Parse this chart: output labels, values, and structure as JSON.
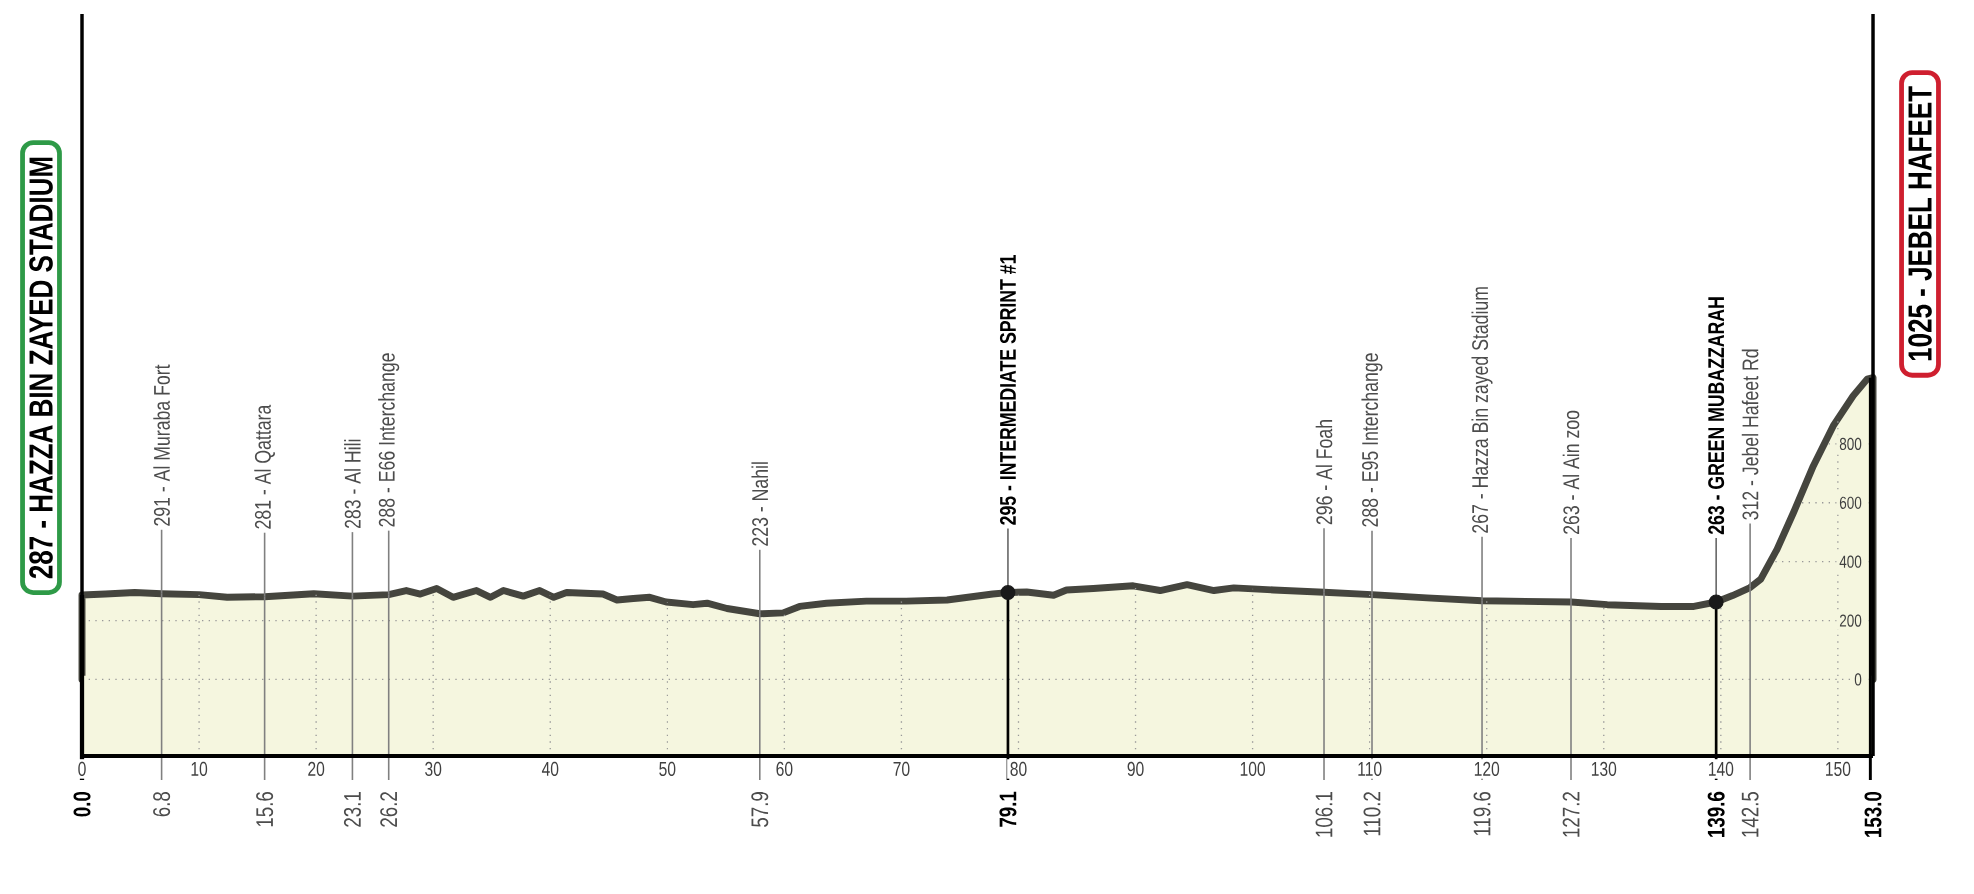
{
  "chart_data": {
    "type": "area",
    "xlim": [
      0,
      153
    ],
    "ylim": [
      -260,
      2260
    ],
    "xticks": [
      0,
      10,
      20,
      30,
      40,
      50,
      60,
      70,
      80,
      90,
      100,
      110,
      120,
      130,
      140,
      150
    ],
    "yticks": [
      0,
      200,
      400,
      600,
      800
    ],
    "grid": true,
    "series": [
      {
        "color": "#f5f6df",
        "x": [
          0,
          2,
          4.5,
          6.8,
          10,
          12.4,
          15.6,
          19.8,
          23.1,
          26.2,
          27.7,
          28.9,
          30.3,
          31.7,
          33.7,
          34.9,
          36.0,
          37.7,
          39.1,
          40.3,
          41.4,
          44.5,
          45.7,
          47.1,
          48.5,
          49.9,
          52.2,
          53.4,
          55.1,
          57.9,
          59.9,
          61.3,
          63.6,
          67.0,
          70.4,
          73.9,
          77.8,
          79.1,
          80.7,
          83.0,
          84.1,
          86.4,
          89.8,
          92.1,
          94.4,
          96.7,
          98.4,
          101.8,
          106.1,
          110.2,
          114.9,
          119.6,
          127.2,
          130.3,
          134.9,
          137.7,
          139.6,
          141.0,
          142.5,
          143.4,
          144.8,
          146.2,
          147.9,
          149.6,
          151.3,
          152.5,
          153.0
        ],
        "values": [
          287,
          290,
          295,
          291,
          288,
          279,
          281,
          291,
          283,
          288,
          302,
          290,
          309,
          279,
          302,
          279,
          302,
          283,
          302,
          279,
          295,
          290,
          270,
          275,
          279,
          263,
          254,
          259,
          241,
          223,
          226,
          248,
          259,
          266,
          266,
          270,
          290,
          295,
          297,
          286,
          304,
          309,
          318,
          302,
          322,
          302,
          311,
          304,
          296,
          288,
          277,
          267,
          263,
          254,
          248,
          248,
          263,
          285,
          312,
          340,
          442,
          566,
          725,
          861,
          963,
          1020,
          1025
        ]
      },
      {
        "type": "scatter",
        "color": "#1a1a1a",
        "marker": "circle",
        "x": [
          79.1,
          139.6
        ],
        "values": [
          295,
          263
        ]
      }
    ],
    "bands": [
      {
        "axis": "y",
        "from": -260,
        "to": 0,
        "color": "#f5f6df"
      }
    ],
    "annotations": [
      {
        "text": "287 - HAZZA BIN ZAYED STADIUM",
        "x": 0,
        "y": 287
      },
      {
        "text": "0.0",
        "x": 0,
        "y": 287
      },
      {
        "text": "291 - Al Muraba Fort",
        "x": 6.8,
        "y": 291
      },
      {
        "text": "6.8",
        "x": 6.8,
        "y": 291
      },
      {
        "text": "281 - Al Qattara",
        "x": 15.6,
        "y": 281
      },
      {
        "text": "15.6",
        "x": 15.6,
        "y": 281
      },
      {
        "text": "283 - Al Hili",
        "x": 23.1,
        "y": 283
      },
      {
        "text": "23.1",
        "x": 23.1,
        "y": 283
      },
      {
        "text": "288 - E66 Interchange",
        "x": 26.2,
        "y": 288
      },
      {
        "text": "26.2",
        "x": 26.2,
        "y": 288
      },
      {
        "text": "223 - Nahil",
        "x": 57.9,
        "y": 223
      },
      {
        "text": "57.9",
        "x": 57.9,
        "y": 223
      },
      {
        "text": "295 - INTERMEDIATE SPRINT #1",
        "x": 79.1,
        "y": 295
      },
      {
        "text": "79.1",
        "x": 79.1,
        "y": 295
      },
      {
        "text": "296 - Al Foah",
        "x": 106.1,
        "y": 296
      },
      {
        "text": "106.1",
        "x": 106.1,
        "y": 296
      },
      {
        "text": "288 - E95 Interchange",
        "x": 110.2,
        "y": 288
      },
      {
        "text": "110.2",
        "x": 110.2,
        "y": 288
      },
      {
        "text": "267 - Hazza Bin zayed Stadium",
        "x": 119.6,
        "y": 267
      },
      {
        "text": "119.6",
        "x": 119.6,
        "y": 267
      },
      {
        "text": "263 - Al Ain zoo",
        "x": 127.2,
        "y": 263
      },
      {
        "text": "127.2",
        "x": 127.2,
        "y": 263
      },
      {
        "text": "263 - GREEN MUBAZZARAH",
        "x": 139.6,
        "y": 263
      },
      {
        "text": "139.6",
        "x": 139.6,
        "y": 263
      },
      {
        "text": "312 - Jebel Hafeet Rd",
        "x": 142.5,
        "y": 312
      },
      {
        "text": "142.5",
        "x": 142.5,
        "y": 312
      },
      {
        "text": "1025 - JEBEL HAFEET",
        "x": 153,
        "y": 1025
      },
      {
        "text": "153.0",
        "x": 153,
        "y": 1025
      }
    ]
  }
}
